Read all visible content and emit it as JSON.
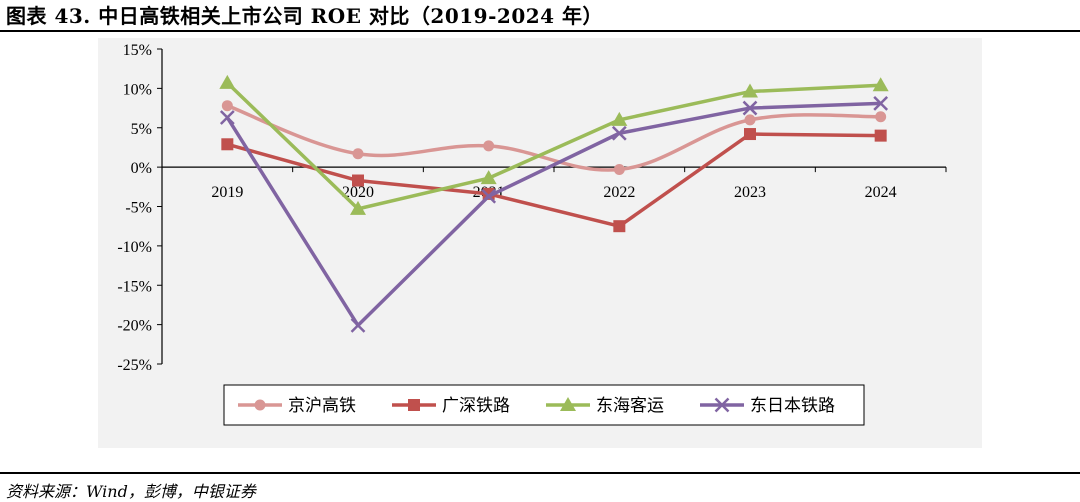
{
  "header": {
    "title": "图表 43. 中日高铁相关上市公司 ROE 对比（2019-2024 年）"
  },
  "footer": {
    "source": "资料来源：Wind，彭博，中银证券"
  },
  "chart_data": {
    "type": "line",
    "title": "图表 43. 中日高铁相关上市公司 ROE 对比（2019-2024 年）",
    "categories": [
      "2019",
      "2020",
      "2021",
      "2022",
      "2023",
      "2024"
    ],
    "y_ticks": [
      "15%",
      "10%",
      "5%",
      "0%",
      "-5%",
      "-10%",
      "-15%",
      "-20%",
      "-25%"
    ],
    "ylim": [
      -25,
      15
    ],
    "unit": "%",
    "legend_position": "bottom",
    "grid": false,
    "series": [
      {
        "name": "京沪高铁",
        "values": [
          7.8,
          1.7,
          2.7,
          -0.3,
          6.0,
          6.4
        ],
        "color": "#d99694",
        "marker": "circle",
        "smooth": true
      },
      {
        "name": "广深铁路",
        "values": [
          2.9,
          -1.7,
          -3.4,
          -7.5,
          4.2,
          4.0
        ],
        "color": "#c0504d",
        "marker": "square",
        "smooth": false
      },
      {
        "name": "东海客运",
        "values": [
          10.7,
          -5.3,
          -1.4,
          6.0,
          9.6,
          10.4
        ],
        "color": "#9bbb59",
        "marker": "triangle",
        "smooth": false
      },
      {
        "name": "东日本铁路",
        "values": [
          6.3,
          -20.1,
          -3.7,
          4.3,
          7.5,
          8.1
        ],
        "color": "#8064a2",
        "marker": "x",
        "smooth": false
      }
    ]
  }
}
